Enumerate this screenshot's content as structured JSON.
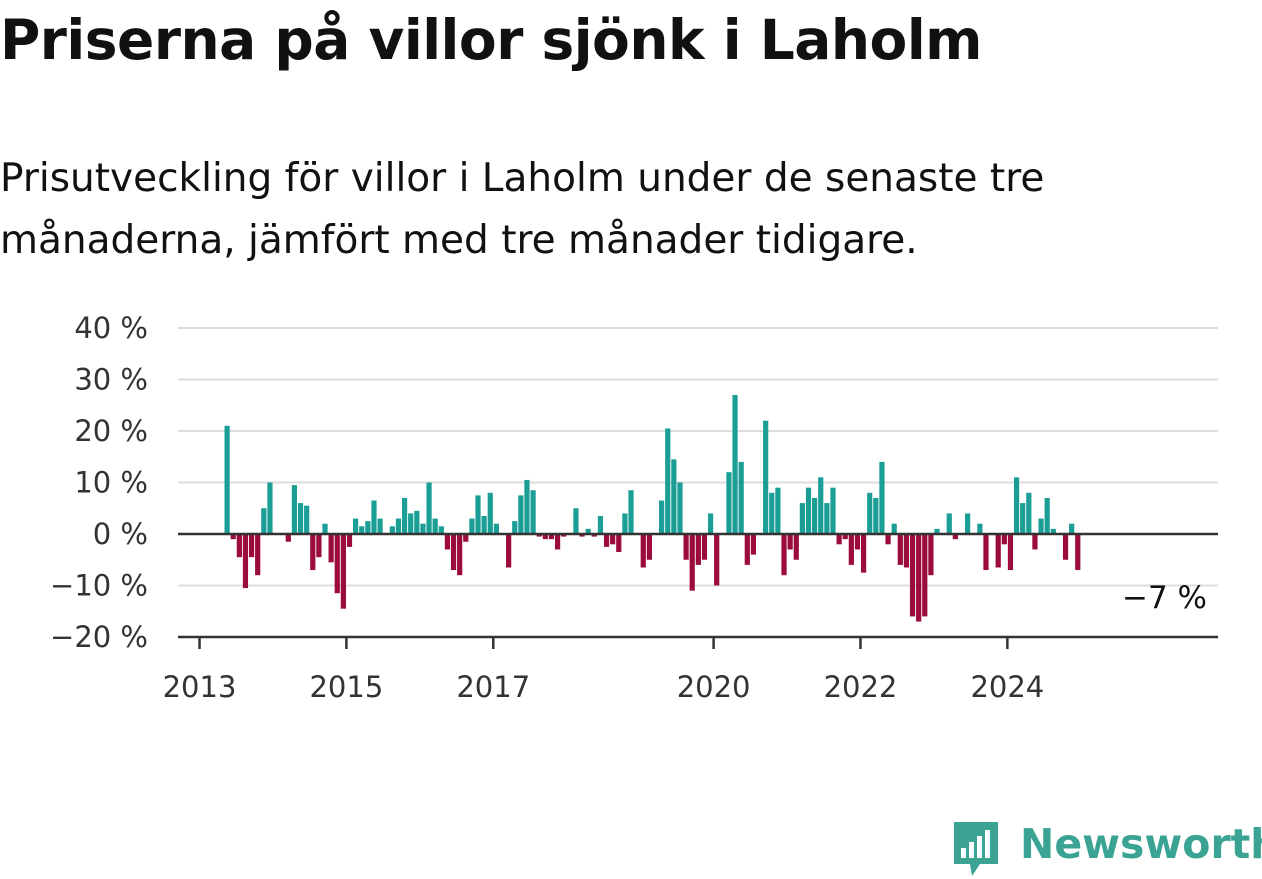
{
  "header": {
    "title": "Priserna på villor sjönk i Laholm",
    "subtitle": "Prisutveckling för villor i Laholm under de senaste tre månaderna, jämfört med tre månader tidigare."
  },
  "chart_data": {
    "type": "bar",
    "x_start": "2013-01",
    "x_step": "month",
    "x_tick_labels": [
      "2013",
      "2015",
      "2017",
      "2020",
      "2022",
      "2024"
    ],
    "y_tick_labels": [
      "40 %",
      "30 %",
      "20 %",
      "10 %",
      "0 %",
      "−10 %",
      "−20 %"
    ],
    "ylim": [
      -20,
      40
    ],
    "grid": true,
    "last_value_label": "−7 %",
    "colors": {
      "positive": "#1a9e96",
      "negative": "#9b0b3c",
      "grid": "#dddddd",
      "axis": "#333333"
    },
    "values": [
      null,
      null,
      null,
      null,
      21,
      -1,
      -4.5,
      -10.5,
      -4.5,
      -8,
      5,
      10,
      null,
      null,
      -1.5,
      9.5,
      6,
      5.5,
      -7,
      -4.5,
      2,
      -5.5,
      -11.5,
      -14.5,
      -2.5,
      3,
      1.5,
      2.5,
      6.5,
      3,
      null,
      1.5,
      3,
      7,
      4,
      4.5,
      2,
      10,
      3,
      1.5,
      -3,
      -7,
      -8,
      -1.5,
      3,
      7.5,
      3.5,
      8,
      2,
      null,
      -6.5,
      2.5,
      7.5,
      10.5,
      8.5,
      -0.5,
      -1,
      -1,
      -3,
      -0.5,
      null,
      5,
      -0.5,
      1,
      -0.5,
      3.5,
      -2.5,
      -2,
      -3.5,
      4,
      8.5,
      null,
      -6.5,
      -5,
      null,
      6.5,
      20.5,
      14.5,
      10,
      -5,
      -11,
      -6,
      -5,
      4,
      -10,
      null,
      12,
      27,
      14,
      -6,
      -4,
      null,
      22,
      8,
      9,
      -8,
      -3,
      -5,
      6,
      9,
      7,
      11,
      6,
      9,
      -2,
      -1,
      -6,
      -3,
      -7.5,
      8,
      7,
      14,
      -2,
      2,
      -6,
      -6.5,
      -16,
      -17,
      -16,
      -8,
      1,
      null,
      4,
      -1,
      null,
      4,
      null,
      2,
      -7,
      null,
      -6.5,
      -2,
      -7,
      11,
      6,
      8,
      -3,
      3,
      7,
      1,
      null,
      -5,
      2,
      -7
    ]
  },
  "logo": {
    "text": "Newsworthy",
    "icon": "newsworthy-chart-icon"
  }
}
